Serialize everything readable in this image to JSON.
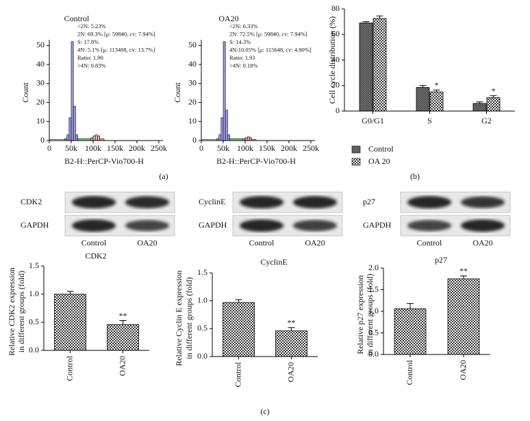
{
  "chart_data": [
    {
      "type": "histogram",
      "title": "Control",
      "xlabel": "B2-H::PerCP-Vio700-H",
      "ylabel": "Count",
      "annotations": [
        "<2N: 5.23%",
        "2N: 69.3% [μ: 59840, cv: 7.94%]",
        "S: 17.8%",
        "4N: 5.1% [μ: 113408, cv: 13.7%]",
        "Ratio: 1.90",
        ">4N: 0.83%"
      ],
      "bins": [
        0,
        35000,
        40000,
        45000,
        50000,
        55000,
        60000,
        65000,
        95000,
        100000,
        105000,
        110000,
        115000,
        125000,
        250000
      ],
      "values": [
        0.5,
        1,
        3,
        12,
        52,
        18,
        3,
        1,
        1.5,
        2.5,
        3,
        2.5,
        1,
        0
      ],
      "colors": [
        "none",
        "#7bd17b",
        "#9a9ae8",
        "#9a9ae8",
        "#9a9ae8",
        "#9a9ae8",
        "#9a9ae8",
        "#7bd17b",
        "#7bd17b",
        "#f4a6a6",
        "#f4a6a6",
        "#f4a6a6",
        "#f4a6a6",
        "none"
      ],
      "xlim": [
        0,
        250000
      ],
      "xticks": [
        0,
        {
          "value": 50000,
          "label": "50k"
        },
        {
          "value": 100000,
          "label": "100k"
        },
        {
          "value": 150000,
          "label": "150k"
        },
        {
          "value": 200000,
          "label": "200k"
        },
        {
          "value": 250000,
          "label": "250k"
        }
      ],
      "ylim": [
        0,
        53
      ],
      "yticks": [
        0,
        10,
        20,
        30,
        40,
        50
      ]
    },
    {
      "type": "histogram",
      "title": "OA20",
      "xlabel": "B2-H::PerCP-Vio700-H",
      "ylabel": "Count",
      "annotations": [
        "<2N: 6.33%",
        "2N: 72.5% [μ: 59840, cv: 7.94%]",
        "S: 14.3%",
        "4N:10.05% [μ: 115648, cv: 4.80%]",
        "Ratio: 1.93",
        ">4N: 0.18%"
      ],
      "bins": [
        0,
        35000,
        40000,
        45000,
        50000,
        55000,
        60000,
        65000,
        95000,
        100000,
        105000,
        110000,
        115000,
        125000,
        250000
      ],
      "values": [
        0.5,
        1,
        3,
        12,
        52,
        16,
        3,
        1,
        1,
        1.5,
        2,
        1.5,
        0.5,
        0
      ],
      "colors": [
        "none",
        "#7bd17b",
        "#9a9ae8",
        "#9a9ae8",
        "#9a9ae8",
        "#9a9ae8",
        "#9a9ae8",
        "#7bd17b",
        "#7bd17b",
        "#f4a6a6",
        "#f4a6a6",
        "#f4a6a6",
        "#f4a6a6",
        "none"
      ],
      "xlim": [
        0,
        250000
      ],
      "xticks": [
        0,
        {
          "value": 50000,
          "label": "50k"
        },
        {
          "value": 100000,
          "label": "100k"
        },
        {
          "value": 150000,
          "label": "150k"
        },
        {
          "value": 200000,
          "label": "200k"
        },
        {
          "value": 250000,
          "label": "250k"
        }
      ],
      "ylim": [
        0,
        53
      ],
      "yticks": [
        0,
        10,
        20,
        30,
        40,
        50
      ]
    },
    {
      "type": "bar",
      "ylabel": [
        "Cell cycle distribution (%)"
      ],
      "categories": [
        "G0/G1",
        "S",
        "G2"
      ],
      "series": [
        {
          "name": "Control",
          "pattern": "hatch",
          "values": [
            69,
            18.5,
            6
          ],
          "errors": [
            1,
            1.5,
            1.2
          ],
          "significance": [
            null,
            null,
            null
          ]
        },
        {
          "name": "OA 20",
          "pattern": "checker",
          "values": [
            72.5,
            15,
            10.5
          ],
          "errors": [
            2,
            1.5,
            1.5
          ],
          "significance": [
            null,
            "*",
            "*"
          ]
        }
      ],
      "ylim": [
        0,
        80
      ],
      "yticks": [
        0,
        20,
        40,
        60,
        80
      ],
      "legend": "bottom"
    },
    {
      "type": "bar",
      "title": "CDK2",
      "ylabel": [
        "Relative CDK2 expression",
        "in different groups (fold)"
      ],
      "categories": [
        "Control",
        "OA20"
      ],
      "pattern": "checker",
      "values": [
        1.0,
        0.46
      ],
      "errors": [
        0.05,
        0.07
      ],
      "significance": [
        null,
        "**"
      ],
      "ylim": [
        0,
        1.5
      ],
      "yticks": [
        {
          "value": 0,
          "label": "0.0"
        },
        0.5,
        {
          "value": 1,
          "label": "1.0"
        },
        1.5
      ]
    },
    {
      "type": "bar",
      "title": "CyclinE",
      "ylabel": [
        "Relative Cyclin E expression",
        "in different groups (fold)"
      ],
      "categories": [
        "Control",
        "OA20"
      ],
      "pattern": "checker",
      "values": [
        0.97,
        0.46
      ],
      "errors": [
        0.05,
        0.06
      ],
      "significance": [
        null,
        "**"
      ],
      "ylim": [
        0,
        1.5
      ],
      "yticks": [
        {
          "value": 0,
          "label": "0.0"
        },
        0.5,
        {
          "value": 1,
          "label": "1.0"
        },
        1.5
      ]
    },
    {
      "type": "bar",
      "title": "p27",
      "ylabel": [
        "Relative p27 expression",
        "in different groups (fold)"
      ],
      "categories": [
        "Control",
        "OA20"
      ],
      "pattern": "checker",
      "values": [
        1.06,
        1.75
      ],
      "errors": [
        0.12,
        0.07
      ],
      "significance": [
        null,
        "**"
      ],
      "ylim": [
        0,
        2.0
      ],
      "yticks": [
        {
          "value": 0,
          "label": "0.0"
        },
        0.5,
        {
          "value": 1,
          "label": "1.0"
        },
        1.5,
        {
          "value": 2,
          "label": "2.0"
        }
      ]
    }
  ],
  "blots": [
    {
      "protein": "CDK2",
      "loading": "GAPDH",
      "lanes": [
        "Control",
        "OA20"
      ]
    },
    {
      "protein": "CyclinE",
      "loading": "GAPDH",
      "lanes": [
        "Control",
        "OA20"
      ]
    },
    {
      "protein": "p27",
      "loading": "GAPDH",
      "lanes": [
        "Control",
        "OA20"
      ]
    }
  ],
  "panel_labels": [
    "(a)",
    "(b)",
    "(c)"
  ]
}
